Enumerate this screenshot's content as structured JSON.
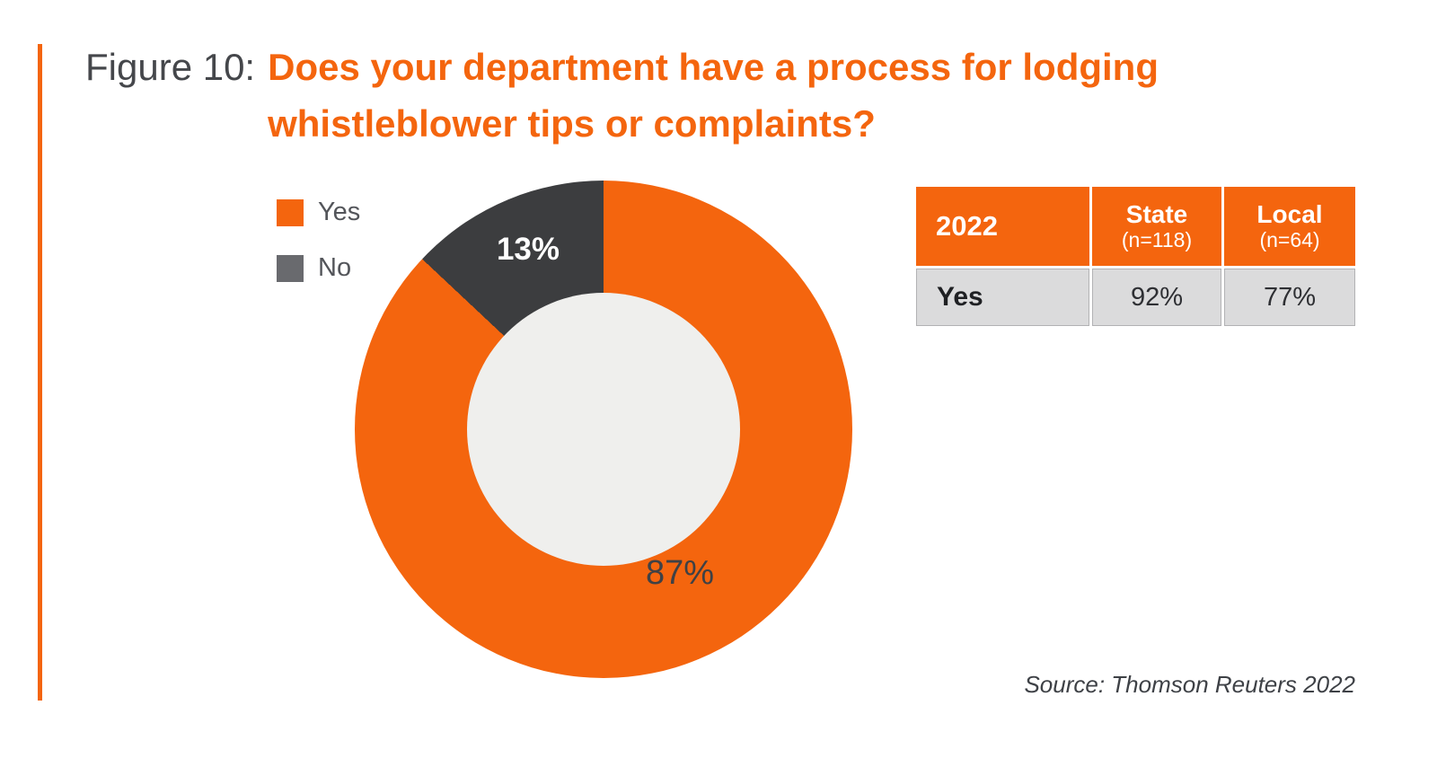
{
  "figure": {
    "prefix": "Figure 10:",
    "line1": "Does your department have a process for lodging",
    "line2": "whistleblower tips or complaints?"
  },
  "legend": {
    "items": [
      {
        "label": "Yes",
        "color": "#F4650E",
        "swatch_style": "background:#F4650E"
      },
      {
        "label": "No",
        "color": "#696A6E",
        "swatch_style": "background:#696A6E"
      }
    ]
  },
  "donut": {
    "yes_label": "87%",
    "no_label": "13%",
    "gradient_style": "background: conic-gradient(#F4650E 0deg 313.2deg, #3C3D3F 313.2deg 360deg)",
    "hole_color": "#EFEFED"
  },
  "table": {
    "year": "2022",
    "col_state": {
      "title": "State",
      "sub": "(n=118)"
    },
    "col_local": {
      "title": "Local",
      "sub": "(n=64)"
    },
    "row_yes": {
      "label": "Yes",
      "state": "92%",
      "local": "77%"
    }
  },
  "source": {
    "text": "Source: Thomson Reuters 2022"
  },
  "colors": {
    "accent_orange": "#F4650E",
    "dark_slice": "#3C3D3F",
    "legend_no_swatch": "#696A6E",
    "inner_hole": "#EFEFED",
    "table_row_gray": "#DBDBDC",
    "title_gray": "#45474B"
  },
  "chart_data": {
    "type": "pie",
    "subtype": "donut",
    "title": "Figure 10: Does your department have a process for lodging whistleblower tips or complaints?",
    "labels": [
      "Yes",
      "No"
    ],
    "values": [
      87,
      13
    ],
    "unit": "%",
    "colors": [
      "#F4650E",
      "#3C3D3F"
    ],
    "start_angle_deg": 0,
    "direction": "clockwise",
    "legend_position": "upper-left",
    "data_labels": [
      "87%",
      "13%"
    ],
    "companion_table": {
      "corner_label": "2022",
      "columns": [
        "State (n=118)",
        "Local (n=64)"
      ],
      "rows": [
        [
          "Yes",
          "92%",
          "77%"
        ]
      ]
    },
    "source": "Source: Thomson Reuters 2022"
  }
}
